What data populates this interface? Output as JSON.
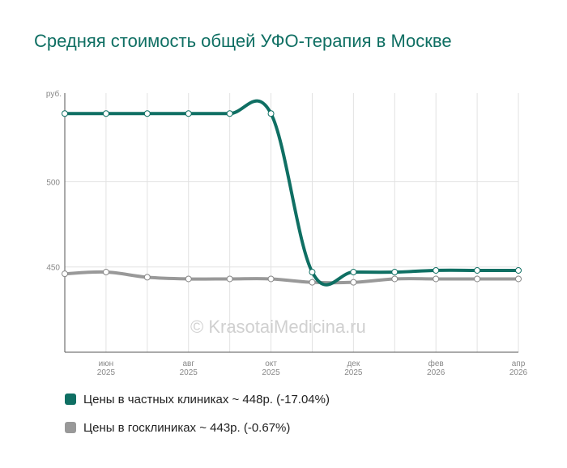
{
  "title": "Средняя стоимость общей УФО-терапия в Москве",
  "watermark": "© KrasotaiMedicina.ru",
  "chart_data": {
    "type": "line",
    "ylabel": "руб.",
    "ylim": [
      400,
      552
    ],
    "y_ticks": [
      450,
      500
    ],
    "grid": true,
    "x": [
      "2025-05",
      "2025-06",
      "2025-07",
      "2025-08",
      "2025-09",
      "2025-10",
      "2025-11",
      "2025-12",
      "2026-01",
      "2026-02",
      "2026-03",
      "2026-04"
    ],
    "x_tick_labels": [
      {
        "index": 1,
        "month": "июн",
        "year": "2025"
      },
      {
        "index": 3,
        "month": "авг",
        "year": "2025"
      },
      {
        "index": 5,
        "month": "окт",
        "year": "2025"
      },
      {
        "index": 7,
        "month": "дек",
        "year": "2025"
      },
      {
        "index": 9,
        "month": "фев",
        "year": "2026"
      },
      {
        "index": 11,
        "month": "апр",
        "year": "2026"
      }
    ],
    "series": [
      {
        "name": "Цены в частных клиниках",
        "color": "#0f6f63",
        "values": [
          540,
          540,
          540,
          540,
          540,
          540,
          447,
          447,
          447,
          448,
          448,
          448
        ]
      },
      {
        "name": "Цены в госклиниках",
        "color": "#999999",
        "values": [
          446,
          447,
          444,
          443,
          443,
          443,
          441,
          441,
          443,
          443,
          443,
          443
        ]
      }
    ],
    "legend_position": "bottom"
  },
  "legend": [
    {
      "text": "Цены в частных клиниках ~ 448р. (-17.04%)",
      "color": "#0f6f63"
    },
    {
      "text": "Цены в госклиниках ~ 443р. (-0.67%)",
      "color": "#999999"
    }
  ]
}
